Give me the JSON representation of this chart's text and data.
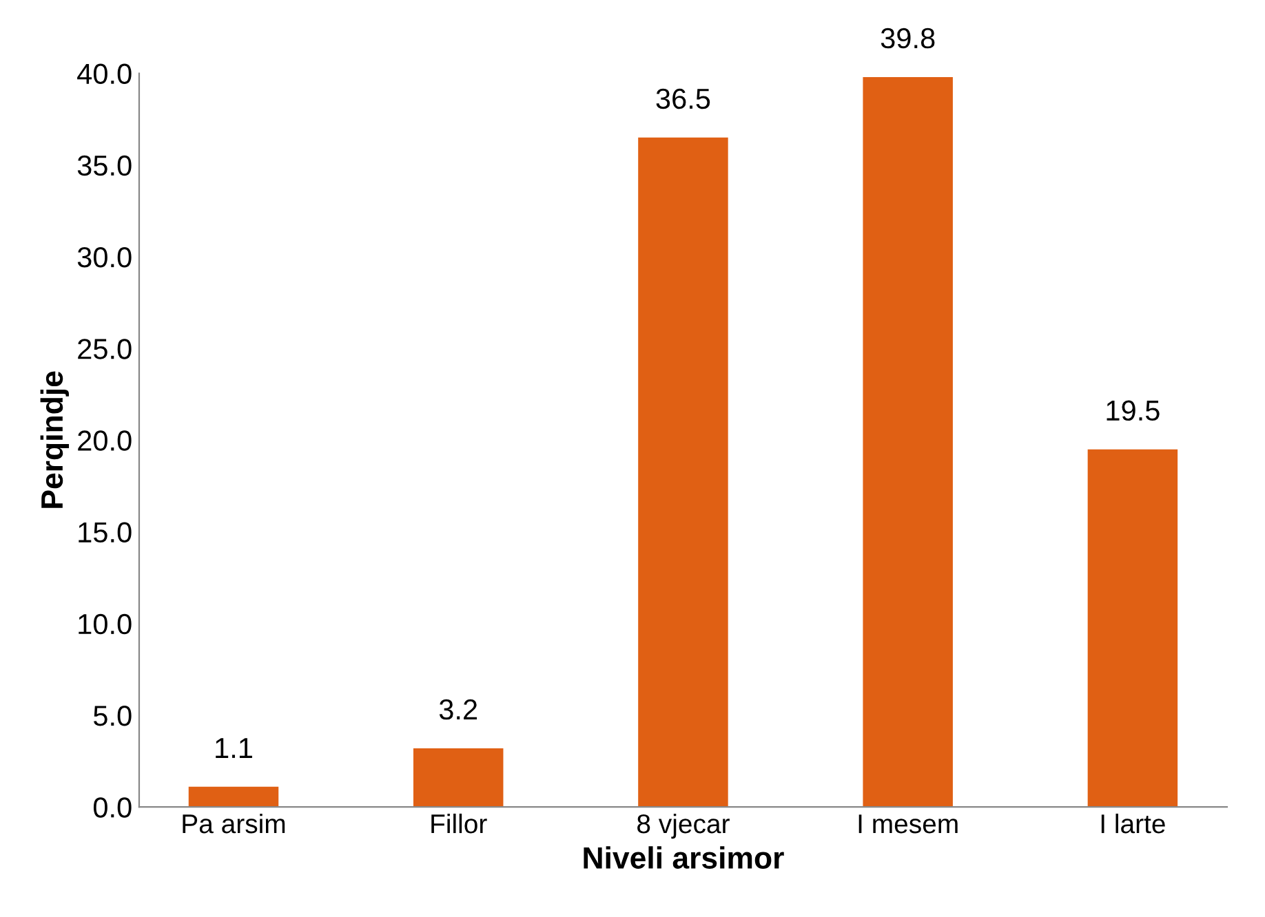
{
  "chart_data": {
    "type": "bar",
    "xlabel": "Niveli arsimor",
    "ylabel": "Perqindje",
    "categories": [
      "Pa arsim",
      "Fillor",
      "8 vjecar",
      "I mesem",
      "I larte"
    ],
    "values": [
      1.1,
      3.2,
      36.5,
      39.8,
      19.5
    ],
    "color": "#e06014",
    "value_labels": [
      "1.1",
      "3.2",
      "36.5",
      "39.8",
      "19.5"
    ],
    "ylim": [
      0,
      40
    ],
    "yticks": [
      {
        "value": 0,
        "label": "0.0"
      },
      {
        "value": 5,
        "label": "5.0"
      },
      {
        "value": 10,
        "label": "10.0"
      },
      {
        "value": 15,
        "label": "15.0"
      },
      {
        "value": 20,
        "label": "20.0"
      },
      {
        "value": 25,
        "label": "25.0"
      },
      {
        "value": 30,
        "label": "30.0"
      },
      {
        "value": 35,
        "label": "35.0"
      },
      {
        "value": 40,
        "label": "40.0"
      }
    ],
    "grid": false,
    "legend": false
  }
}
